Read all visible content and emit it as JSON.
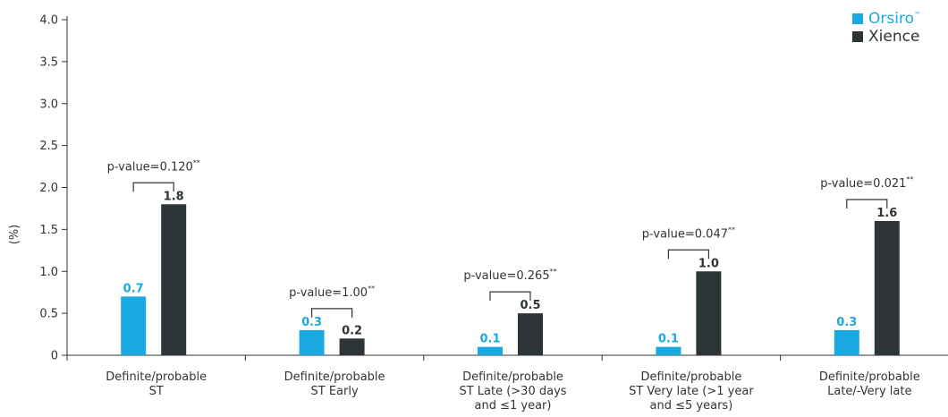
{
  "chart_data": {
    "type": "bar",
    "ylabel": "(%)",
    "ylim": [
      0,
      4.0
    ],
    "yticks": [
      "0",
      "0.5",
      "1.0",
      "1.5",
      "2.0",
      "2.5",
      "3.0",
      "3.5",
      "4.0"
    ],
    "categories": [
      [
        "Definite/probable",
        "ST"
      ],
      [
        "Definite/probable",
        "ST Early"
      ],
      [
        "Definite/probable",
        "ST Late (>30 days",
        "and ≤1 year)"
      ],
      [
        "Definite/probable",
        "ST Very late (>1 year",
        "and ≤5 years)"
      ],
      [
        "Definite/probable",
        "Late/-Very late"
      ]
    ],
    "series": [
      {
        "name": "Orsiro",
        "name_mark": "™",
        "color": "#1ba9e1",
        "values": [
          0.7,
          0.3,
          0.1,
          0.1,
          0.3
        ],
        "labels": [
          "0.7",
          "0.3",
          "0.1",
          "0.1",
          "0.3"
        ]
      },
      {
        "name": "Xience",
        "name_mark": "",
        "color": "#2d3538",
        "values": [
          1.8,
          0.2,
          0.5,
          1.0,
          1.6
        ],
        "labels": [
          "1.8",
          "0.2",
          "0.5",
          "1.0",
          "1.6"
        ]
      }
    ],
    "annotations": [
      {
        "text": "p-value=0.120",
        "mark": "**"
      },
      {
        "text": "p-value=1.00",
        "mark": "**"
      },
      {
        "text": "p-value=0.265",
        "mark": "**"
      },
      {
        "text": "p-value=0.047",
        "mark": "**"
      },
      {
        "text": "p-value=0.021",
        "mark": "**"
      }
    ],
    "legend": "top-right",
    "grid": false
  }
}
